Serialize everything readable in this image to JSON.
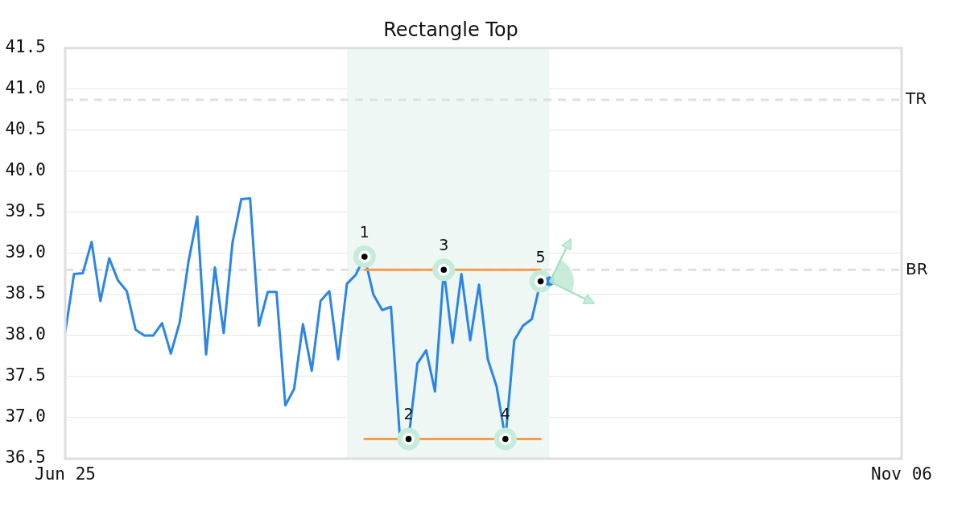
{
  "chart_data": {
    "type": "line",
    "title": "Rectangle Top",
    "categories": [
      "Jun 25",
      null,
      null,
      null,
      null,
      null,
      null,
      null,
      null,
      null,
      null,
      null,
      null,
      null,
      null,
      null,
      null,
      null,
      null,
      null,
      null,
      null,
      null,
      null,
      null,
      null,
      null,
      null,
      null,
      null,
      null,
      null,
      null,
      null,
      null,
      null,
      null,
      null,
      null,
      null,
      null,
      null,
      null,
      null,
      null,
      null,
      null,
      null,
      null,
      null,
      null,
      null,
      null,
      null,
      null,
      null,
      null,
      null,
      null,
      null,
      null,
      null,
      null,
      null,
      null,
      null,
      null,
      null,
      null,
      null,
      null,
      null,
      null,
      null,
      null,
      null,
      null,
      null,
      null,
      null,
      null,
      null,
      null,
      null,
      null,
      null,
      null,
      null,
      null,
      null,
      null,
      null,
      null,
      null,
      null,
      "Nov 06"
    ],
    "series": [
      {
        "color": "#2b85e8",
        "values": [
          38.04,
          38.75,
          38.76,
          39.14,
          38.42,
          38.94,
          38.67,
          38.54,
          38.07,
          38.0,
          38.0,
          38.15,
          37.78,
          38.16,
          38.9,
          39.45,
          37.77,
          38.83,
          38.03,
          39.13,
          39.66,
          39.67,
          38.12,
          38.53,
          38.53,
          37.15,
          37.35,
          38.14,
          37.57,
          38.42,
          38.54,
          37.71,
          38.63,
          38.74,
          38.96,
          38.5,
          38.31,
          38.35,
          36.78,
          36.74,
          37.66,
          37.82,
          37.32,
          38.8,
          37.91,
          38.75,
          37.94,
          38.62,
          37.71,
          37.38,
          36.74,
          37.94,
          38.12,
          38.2,
          38.66,
          38.66,
          null,
          null,
          null,
          null,
          null,
          null,
          null,
          null,
          null,
          null,
          null,
          null,
          null,
          null,
          null,
          null,
          null,
          null,
          null,
          null,
          null,
          null,
          null,
          null,
          null,
          null,
          null,
          null,
          null,
          null,
          null,
          null,
          null,
          null,
          null,
          null,
          null,
          null,
          null,
          null
        ]
      },
      {
        "type": "line",
        "color": "#f59d48",
        "values": [
          null,
          null,
          null,
          null,
          null,
          null,
          null,
          null,
          null,
          null,
          null,
          null,
          null,
          null,
          null,
          null,
          null,
          null,
          null,
          null,
          null,
          null,
          null,
          null,
          null,
          null,
          null,
          null,
          null,
          null,
          null,
          null,
          null,
          null,
          38.8,
          38.8,
          38.8,
          38.8,
          38.8,
          38.8,
          38.8,
          38.8,
          38.8,
          38.8,
          38.8,
          38.8,
          38.8,
          38.8,
          38.8,
          38.8,
          38.8,
          38.8,
          38.8,
          38.8,
          38.8,
          null,
          null,
          null,
          null,
          null,
          null,
          null,
          null,
          null,
          null,
          null,
          null,
          null,
          null,
          null,
          null,
          null,
          null,
          null,
          null,
          null,
          null,
          null,
          null,
          null,
          null,
          null,
          null,
          null,
          null,
          null,
          null,
          null,
          null,
          null,
          null,
          null,
          null,
          null,
          null,
          null
        ]
      },
      {
        "type": "line",
        "color": "#f59d48",
        "values": [
          null,
          null,
          null,
          null,
          null,
          null,
          null,
          null,
          null,
          null,
          null,
          null,
          null,
          null,
          null,
          null,
          null,
          null,
          null,
          null,
          null,
          null,
          null,
          null,
          null,
          null,
          null,
          null,
          null,
          null,
          null,
          null,
          null,
          null,
          36.74,
          36.74,
          36.74,
          36.74,
          36.74,
          36.74,
          36.74,
          36.74,
          36.74,
          36.74,
          36.74,
          36.74,
          36.74,
          36.74,
          36.74,
          36.74,
          36.74,
          36.74,
          36.74,
          36.74,
          36.74,
          null,
          null,
          null,
          null,
          null,
          null,
          null,
          null,
          null,
          null,
          null,
          null,
          null,
          null,
          null,
          null,
          null,
          null,
          null,
          null,
          null,
          null,
          null,
          null,
          null,
          null,
          null,
          null,
          null,
          null,
          null,
          null,
          null,
          null,
          null,
          null,
          null,
          null,
          null,
          null,
          null
        ]
      },
      {
        "type": "scatter",
        "color": "#c5ecd9",
        "marker": "circle",
        "values": [
          null,
          null,
          null,
          null,
          null,
          null,
          null,
          null,
          null,
          null,
          null,
          null,
          null,
          null,
          null,
          null,
          null,
          null,
          null,
          null,
          null,
          null,
          null,
          null,
          null,
          null,
          null,
          null,
          null,
          null,
          null,
          null,
          null,
          null,
          38.96,
          null,
          null,
          null,
          null,
          36.74,
          null,
          null,
          null,
          38.8,
          null,
          null,
          null,
          null,
          null,
          null,
          36.74,
          null,
          null,
          null,
          38.66,
          null,
          null,
          null,
          null,
          null,
          null,
          null,
          null,
          null,
          null,
          null,
          null,
          null,
          null,
          null,
          null,
          null,
          null,
          null,
          null,
          null,
          null,
          null,
          null,
          null,
          null,
          null,
          null,
          null,
          null,
          null,
          null,
          null,
          null,
          null,
          null,
          null,
          null,
          null,
          null,
          null
        ]
      },
      {
        "type": "scatter",
        "color": "#2b85e8",
        "marker": "circle",
        "values": [
          null,
          null,
          null,
          null,
          null,
          null,
          null,
          null,
          null,
          null,
          null,
          null,
          null,
          null,
          null,
          null,
          null,
          null,
          null,
          null,
          null,
          null,
          null,
          null,
          null,
          null,
          null,
          null,
          null,
          null,
          null,
          null,
          null,
          null,
          null,
          null,
          null,
          null,
          null,
          null,
          null,
          null,
          null,
          null,
          null,
          null,
          null,
          null,
          null,
          null,
          null,
          null,
          null,
          null,
          null,
          38.66,
          null,
          null,
          null,
          null,
          null,
          null,
          null,
          null,
          null,
          null,
          null,
          null,
          null,
          null,
          null,
          null,
          null,
          null,
          null,
          null,
          null,
          null,
          null,
          null,
          null,
          null,
          null,
          null,
          null,
          null,
          null,
          null,
          null,
          null,
          null,
          null,
          null,
          null,
          null,
          null
        ]
      }
    ],
    "ylim": [
      36.5,
      41.5
    ],
    "yticks": [
      36.5,
      {
        "value": 37,
        "label": "37.0"
      },
      37.5,
      {
        "value": 38,
        "label": "38.0"
      },
      38.5,
      {
        "value": 39,
        "label": "39.0"
      },
      39.5,
      {
        "value": 40,
        "label": "40.0"
      },
      40.5,
      {
        "value": 41,
        "label": "41.0"
      },
      41.5
    ],
    "grid": "y",
    "ref_lines": [
      {
        "axis": "y",
        "value": 40.87,
        "label": "TR",
        "color": "#e0e0e0",
        "line_style": "dashed"
      },
      {
        "axis": "y",
        "value": 38.8,
        "label": "BR",
        "color": "#e0e0e0",
        "line_style": "dashed"
      }
    ],
    "annotations": [
      {
        "text": "1",
        "y": 38.96
      },
      {
        "text": "2",
        "y": 36.74
      },
      {
        "text": "3",
        "y": 38.8
      },
      {
        "text": "4",
        "y": 36.74
      },
      {
        "text": "5",
        "y": 38.66
      }
    ]
  }
}
